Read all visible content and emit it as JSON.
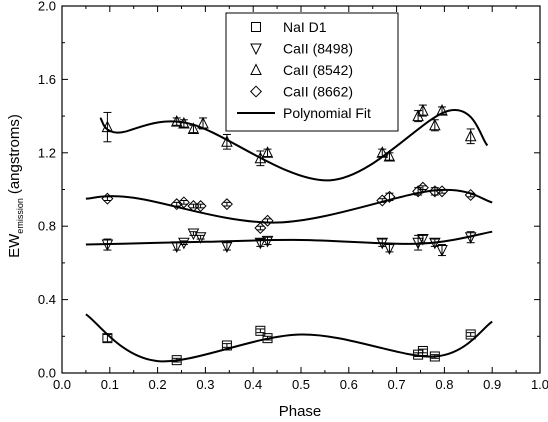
{
  "chart_data": {
    "type": "scatter",
    "xlabel": "Phase",
    "ylabel": {
      "main": "EW",
      "subscript": "emission",
      "unit": "(angstroms)"
    },
    "xlim": [
      0.0,
      1.0
    ],
    "ylim": [
      0.0,
      2.0
    ],
    "xticks": [
      "0.0",
      "0.1",
      "0.2",
      "0.3",
      "0.4",
      "0.5",
      "0.6",
      "0.7",
      "0.8",
      "0.9",
      "1.0"
    ],
    "yticks": [
      "0.0",
      "0.4",
      "0.8",
      "1.2",
      "1.6",
      "2.0"
    ],
    "legend": {
      "position": "top-center",
      "entries": [
        "NaI D1",
        "CaII (8498)",
        "CaII (8542)",
        "CaII (8662)",
        "Polynomial Fit"
      ]
    },
    "series": [
      {
        "name": "NaI D1",
        "marker": "square",
        "points": [
          {
            "x": 0.095,
            "y": 0.19,
            "err": 0.02
          },
          {
            "x": 0.24,
            "y": 0.07,
            "err": 0.01
          },
          {
            "x": 0.345,
            "y": 0.15,
            "err": 0.01
          },
          {
            "x": 0.415,
            "y": 0.23,
            "err": 0.01
          },
          {
            "x": 0.43,
            "y": 0.19,
            "err": 0.01
          },
          {
            "x": 0.745,
            "y": 0.1,
            "err": 0.01
          },
          {
            "x": 0.755,
            "y": 0.12,
            "err": 0.01
          },
          {
            "x": 0.78,
            "y": 0.09,
            "err": 0.01
          },
          {
            "x": 0.855,
            "y": 0.21,
            "err": 0.01
          }
        ],
        "fit": [
          0.05,
          0.32,
          0.9,
          0.28,
          [
            [
              0.2,
              0.065
            ],
            [
              0.5,
              0.21
            ],
            [
              0.78,
              0.09
            ]
          ]
        ]
      },
      {
        "name": "CaII (8498)",
        "marker": "triangle-down",
        "points": [
          {
            "x": 0.095,
            "y": 0.7,
            "err": 0.03
          },
          {
            "x": 0.24,
            "y": 0.69,
            "err": 0.02
          },
          {
            "x": 0.255,
            "y": 0.71,
            "err": 0.01
          },
          {
            "x": 0.275,
            "y": 0.76,
            "err": 0.01
          },
          {
            "x": 0.29,
            "y": 0.74,
            "err": 0.01
          },
          {
            "x": 0.345,
            "y": 0.69,
            "err": 0.02
          },
          {
            "x": 0.415,
            "y": 0.71,
            "err": 0.02
          },
          {
            "x": 0.43,
            "y": 0.72,
            "err": 0.02
          },
          {
            "x": 0.67,
            "y": 0.71,
            "err": 0.02
          },
          {
            "x": 0.685,
            "y": 0.68,
            "err": 0.02
          },
          {
            "x": 0.745,
            "y": 0.71,
            "err": 0.04
          },
          {
            "x": 0.755,
            "y": 0.73,
            "err": 0.02
          },
          {
            "x": 0.78,
            "y": 0.71,
            "err": 0.02
          },
          {
            "x": 0.795,
            "y": 0.67,
            "err": 0.03
          },
          {
            "x": 0.855,
            "y": 0.74,
            "err": 0.03
          }
        ],
        "fit": [
          0.05,
          0.7,
          0.9,
          0.77,
          [
            [
              0.3,
              0.715
            ],
            [
              0.5,
              0.725
            ],
            [
              0.75,
              0.705
            ]
          ]
        ]
      },
      {
        "name": "CaII (8542)",
        "marker": "triangle-up",
        "points": [
          {
            "x": 0.095,
            "y": 1.34,
            "err": 0.08
          },
          {
            "x": 0.24,
            "y": 1.37,
            "err": 0.02
          },
          {
            "x": 0.255,
            "y": 1.36,
            "err": 0.02
          },
          {
            "x": 0.275,
            "y": 1.33,
            "err": 0.02
          },
          {
            "x": 0.295,
            "y": 1.36,
            "err": 0.03
          },
          {
            "x": 0.345,
            "y": 1.26,
            "err": 0.04
          },
          {
            "x": 0.415,
            "y": 1.17,
            "err": 0.04
          },
          {
            "x": 0.43,
            "y": 1.2,
            "err": 0.02
          },
          {
            "x": 0.67,
            "y": 1.2,
            "err": 0.02
          },
          {
            "x": 0.685,
            "y": 1.18,
            "err": 0.02
          },
          {
            "x": 0.745,
            "y": 1.4,
            "err": 0.03
          },
          {
            "x": 0.755,
            "y": 1.43,
            "err": 0.03
          },
          {
            "x": 0.78,
            "y": 1.35,
            "err": 0.03
          },
          {
            "x": 0.795,
            "y": 1.43,
            "err": 0.02
          },
          {
            "x": 0.855,
            "y": 1.29,
            "err": 0.04
          }
        ],
        "fit": [
          0.08,
          1.39,
          0.89,
          1.24,
          [
            [
              0.115,
              1.31
            ],
            [
              0.265,
              1.36
            ],
            [
              0.56,
              1.05
            ],
            [
              0.81,
              1.43
            ]
          ]
        ]
      },
      {
        "name": "CaII (8662)",
        "marker": "diamond",
        "points": [
          {
            "x": 0.095,
            "y": 0.95,
            "err": 0.01
          },
          {
            "x": 0.24,
            "y": 0.92,
            "err": 0.01
          },
          {
            "x": 0.255,
            "y": 0.93,
            "err": 0.01
          },
          {
            "x": 0.275,
            "y": 0.91,
            "err": 0.01
          },
          {
            "x": 0.29,
            "y": 0.91,
            "err": 0.01
          },
          {
            "x": 0.345,
            "y": 0.92,
            "err": 0.01
          },
          {
            "x": 0.415,
            "y": 0.79,
            "err": 0.01
          },
          {
            "x": 0.43,
            "y": 0.83,
            "err": 0.01
          },
          {
            "x": 0.67,
            "y": 0.94,
            "err": 0.01
          },
          {
            "x": 0.685,
            "y": 0.96,
            "err": 0.02
          },
          {
            "x": 0.745,
            "y": 0.99,
            "err": 0.02
          },
          {
            "x": 0.755,
            "y": 1.01,
            "err": 0.01
          },
          {
            "x": 0.78,
            "y": 0.99,
            "err": 0.02
          },
          {
            "x": 0.795,
            "y": 0.99,
            "err": 0.01
          },
          {
            "x": 0.855,
            "y": 0.97,
            "err": 0.01
          }
        ],
        "fit": [
          0.05,
          0.95,
          0.9,
          0.93,
          [
            [
              0.15,
              0.955
            ],
            [
              0.45,
              0.82
            ],
            [
              0.78,
              0.995
            ]
          ]
        ]
      }
    ],
    "grid": false
  }
}
